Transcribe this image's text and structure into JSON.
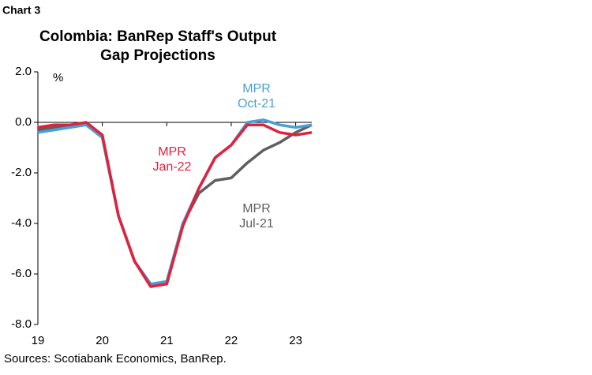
{
  "chart_data": {
    "type": "line",
    "chart_label": "Chart 3",
    "title": [
      "Colombia: BanRep Staff's Output",
      "Gap Projections"
    ],
    "y_unit": "%",
    "source": "Sources: Scotiabank Economics, BanRep.",
    "x": [
      19,
      19.25,
      19.5,
      19.75,
      20,
      20.25,
      20.5,
      20.75,
      21,
      21.25,
      21.5,
      21.75,
      22,
      22.25,
      22.5,
      22.75,
      23,
      23.25
    ],
    "xlim": [
      19,
      23.25
    ],
    "xticks": [
      19,
      20,
      21,
      22,
      23
    ],
    "ylim": [
      -8,
      2
    ],
    "yticks": [
      {
        "value": 2,
        "label": "2.0"
      },
      {
        "value": 0,
        "label": "0.0"
      },
      {
        "value": -2,
        "label": "-2.0"
      },
      {
        "value": -4,
        "label": "-4.0"
      },
      {
        "value": -6,
        "label": "-6.0"
      },
      {
        "value": -8,
        "label": "-8.0"
      }
    ],
    "series": [
      {
        "label": [
          "MPR",
          "Jul-21"
        ],
        "color": "#5f5f5f",
        "values": [
          -0.3,
          -0.2,
          -0.1,
          -0.1,
          -0.6,
          -3.7,
          -5.5,
          -6.4,
          -6.3,
          -4.0,
          -2.8,
          -2.3,
          -2.2,
          -1.6,
          -1.1,
          -0.8,
          -0.4,
          -0.1
        ]
      },
      {
        "label": [
          "MPR",
          "Oct-21"
        ],
        "color": "#4a9fd4",
        "values": [
          -0.4,
          -0.3,
          -0.2,
          -0.1,
          -0.6,
          -3.7,
          -5.5,
          -6.4,
          -6.3,
          -4.0,
          -2.6,
          -1.4,
          -0.9,
          0.0,
          0.1,
          -0.1,
          -0.2,
          -0.1
        ]
      },
      {
        "label": [
          "MPR",
          "Jan-22"
        ],
        "color": "#e3203c",
        "values": [
          -0.2,
          -0.1,
          -0.1,
          0.0,
          -0.5,
          -3.7,
          -5.5,
          -6.5,
          -6.4,
          -4.1,
          -2.6,
          -1.4,
          -0.9,
          -0.1,
          -0.1,
          -0.4,
          -0.5,
          -0.4
        ]
      }
    ]
  }
}
